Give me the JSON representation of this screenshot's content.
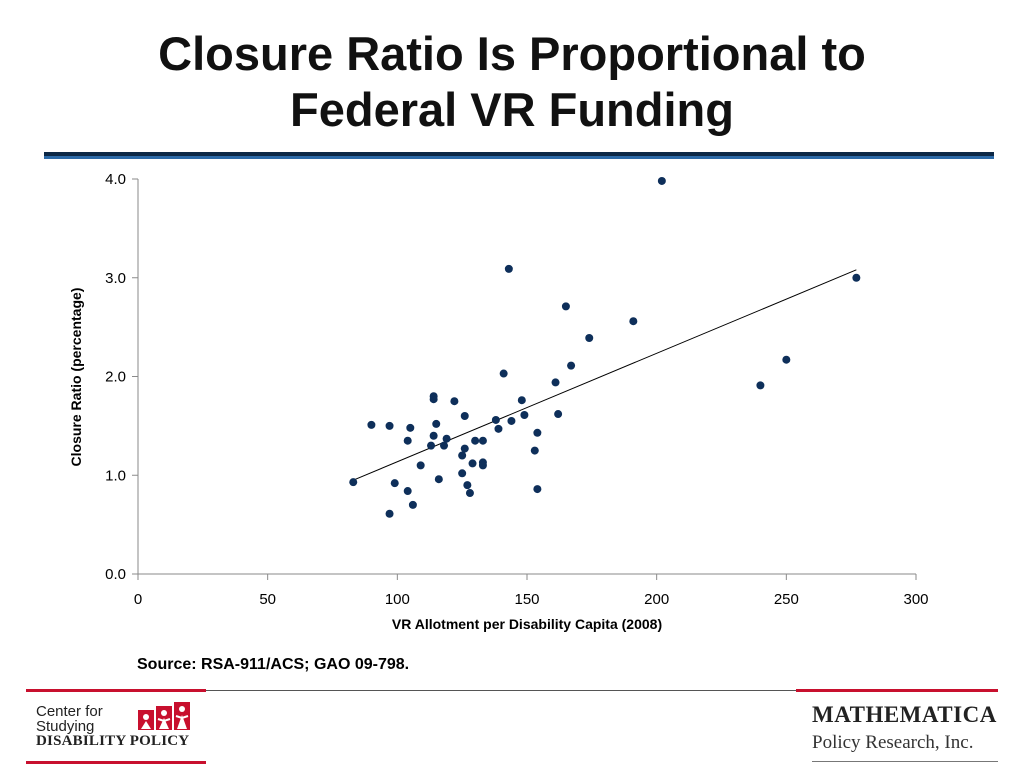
{
  "title": {
    "line1": "Closure Ratio Is Proportional to",
    "line2": "Federal VR Funding"
  },
  "source": "Source:  RSA-911/ACS; GAO 09-798.",
  "logos": {
    "csdp": {
      "line1": "Center for",
      "line2": "Studying",
      "line3": "DISABILITY POLICY"
    },
    "mathematica": {
      "name": "MATHEMATICA",
      "sub": "Policy Research, Inc."
    }
  },
  "colors": {
    "point": "#0e2f5a",
    "title_rule_dark": "#0c2846",
    "title_rule_light": "#2c6aa8",
    "footer_accent": "#c8102e",
    "csdp_icon": "#c8102e"
  },
  "chart_data": {
    "type": "scatter",
    "title": "",
    "xlabel": "VR Allotment per Disability Capita (2008)",
    "ylabel": "Closure Ratio (percentage)",
    "xlim": [
      0,
      300
    ],
    "ylim": [
      0.0,
      4.0
    ],
    "x_ticks": [
      "0",
      "50",
      "100",
      "150",
      "200",
      "250",
      "300"
    ],
    "y_ticks": [
      "0.0",
      "1.0",
      "2.0",
      "3.0",
      "4.0"
    ],
    "grid": false,
    "legend": "none",
    "trendline": {
      "x": [
        83,
        277
      ],
      "y": [
        0.95,
        3.08
      ]
    },
    "points": [
      {
        "x": 83,
        "y": 0.93
      },
      {
        "x": 90,
        "y": 1.51
      },
      {
        "x": 97,
        "y": 0.61
      },
      {
        "x": 97,
        "y": 1.5
      },
      {
        "x": 99,
        "y": 0.92
      },
      {
        "x": 104,
        "y": 0.84
      },
      {
        "x": 104,
        "y": 1.35
      },
      {
        "x": 105,
        "y": 1.48
      },
      {
        "x": 106,
        "y": 0.7
      },
      {
        "x": 109,
        "y": 1.1
      },
      {
        "x": 113,
        "y": 1.3
      },
      {
        "x": 114,
        "y": 1.4
      },
      {
        "x": 114,
        "y": 1.77
      },
      {
        "x": 114,
        "y": 1.8
      },
      {
        "x": 115,
        "y": 1.52
      },
      {
        "x": 116,
        "y": 0.96
      },
      {
        "x": 118,
        "y": 1.3
      },
      {
        "x": 119,
        "y": 1.37
      },
      {
        "x": 122,
        "y": 1.75
      },
      {
        "x": 125,
        "y": 1.02
      },
      {
        "x": 125,
        "y": 1.2
      },
      {
        "x": 126,
        "y": 1.6
      },
      {
        "x": 126,
        "y": 1.27
      },
      {
        "x": 127,
        "y": 0.9
      },
      {
        "x": 128,
        "y": 0.82
      },
      {
        "x": 129,
        "y": 1.12
      },
      {
        "x": 130,
        "y": 1.35
      },
      {
        "x": 133,
        "y": 1.35
      },
      {
        "x": 133,
        "y": 1.13
      },
      {
        "x": 133,
        "y": 1.1
      },
      {
        "x": 138,
        "y": 1.56
      },
      {
        "x": 139,
        "y": 1.47
      },
      {
        "x": 141,
        "y": 2.03
      },
      {
        "x": 143,
        "y": 3.09
      },
      {
        "x": 144,
        "y": 1.55
      },
      {
        "x": 148,
        "y": 1.76
      },
      {
        "x": 149,
        "y": 1.61
      },
      {
        "x": 153,
        "y": 1.25
      },
      {
        "x": 154,
        "y": 1.43
      },
      {
        "x": 154,
        "y": 0.86
      },
      {
        "x": 161,
        "y": 1.94
      },
      {
        "x": 162,
        "y": 1.62
      },
      {
        "x": 165,
        "y": 2.71
      },
      {
        "x": 167,
        "y": 2.11
      },
      {
        "x": 174,
        "y": 2.39
      },
      {
        "x": 191,
        "y": 2.56
      },
      {
        "x": 202,
        "y": 3.98
      },
      {
        "x": 240,
        "y": 1.91
      },
      {
        "x": 250,
        "y": 2.17
      },
      {
        "x": 277,
        "y": 3.0
      }
    ]
  }
}
